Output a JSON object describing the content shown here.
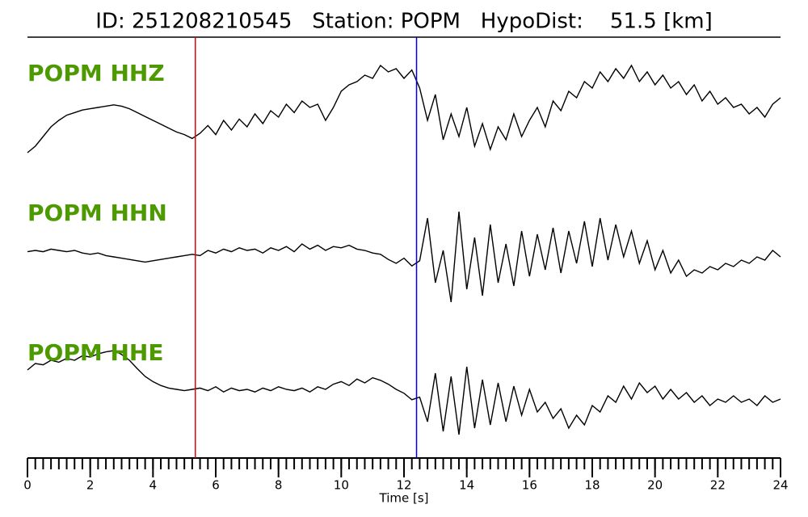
{
  "chart_data": {
    "type": "line",
    "title": "ID: 251208210545   Station: POPM   HypoDist:    51.5 [km]",
    "xlabel": "Time [s]",
    "xlim": [
      0,
      24
    ],
    "xticks": [
      0,
      2,
      4,
      6,
      8,
      10,
      12,
      14,
      16,
      18,
      20,
      22,
      24
    ],
    "xminorticks": [
      0,
      0.25,
      0.5,
      0.75,
      1,
      1.25,
      1.5,
      1.75,
      2,
      2.25,
      2.5,
      2.75,
      3,
      3.25,
      3.5,
      3.75,
      4,
      4.25,
      4.5,
      4.75,
      5,
      5.25,
      5.5,
      5.75,
      6,
      6.25,
      6.5,
      6.75,
      7,
      7.25,
      7.5,
      7.75,
      8,
      8.25,
      8.5,
      8.75,
      9,
      9.25,
      9.5,
      9.75,
      10,
      10.25,
      10.5,
      10.75,
      11,
      11.25,
      11.5,
      11.75,
      12,
      12.25,
      12.5,
      12.75,
      13,
      13.25,
      13.5,
      13.75,
      14,
      14.25,
      14.5,
      14.75,
      15,
      15.25,
      15.5,
      15.75,
      16,
      16.25,
      16.5,
      16.75,
      17,
      17.25,
      17.5,
      17.75,
      18,
      18.25,
      18.5,
      18.75,
      19,
      19.25,
      19.5,
      19.75,
      20,
      20.25,
      20.5,
      20.75,
      21,
      21.25,
      21.5,
      21.75,
      22,
      22.25,
      22.5,
      22.75,
      23,
      23.25,
      23.5,
      23.75,
      24
    ],
    "x": [
      0,
      0.25,
      0.5,
      0.75,
      1,
      1.25,
      1.5,
      1.75,
      2,
      2.25,
      2.5,
      2.75,
      3,
      3.25,
      3.5,
      3.75,
      4,
      4.25,
      4.5,
      4.75,
      5,
      5.25,
      5.5,
      5.75,
      6,
      6.25,
      6.5,
      6.75,
      7,
      7.25,
      7.5,
      7.75,
      8,
      8.25,
      8.5,
      8.75,
      9,
      9.25,
      9.5,
      9.75,
      10,
      10.25,
      10.5,
      10.75,
      11,
      11.25,
      11.5,
      11.75,
      12,
      12.25,
      12.5,
      12.75,
      13,
      13.25,
      13.5,
      13.75,
      14,
      14.25,
      14.5,
      14.75,
      15,
      15.25,
      15.5,
      15.75,
      16,
      16.25,
      16.5,
      16.75,
      17,
      17.25,
      17.5,
      17.75,
      18,
      18.25,
      18.5,
      18.75,
      19,
      19.25,
      19.5,
      19.75,
      20,
      20.25,
      20.5,
      20.75,
      21,
      21.25,
      21.5,
      21.75,
      22,
      22.25,
      22.5,
      22.75,
      23,
      23.25,
      23.5,
      23.75,
      24
    ],
    "ylim": [
      -100,
      100
    ],
    "label_color": "#4c9a00",
    "series": [
      {
        "name": "POPM HHZ",
        "color": "#000000",
        "values": [
          -80,
          -70,
          -55,
          -40,
          -30,
          -22,
          -18,
          -14,
          -12,
          -10,
          -8,
          -6,
          -8,
          -12,
          -18,
          -24,
          -30,
          -36,
          -42,
          -48,
          -52,
          -58,
          -50,
          -38,
          -52,
          -30,
          -45,
          -28,
          -40,
          -20,
          -35,
          -15,
          -25,
          -5,
          -18,
          0,
          -10,
          -5,
          -30,
          -10,
          15,
          25,
          30,
          40,
          35,
          55,
          45,
          50,
          35,
          48,
          20,
          -30,
          10,
          -60,
          -20,
          -55,
          -10,
          -70,
          -35,
          -75,
          -40,
          -60,
          -20,
          -55,
          -30,
          -10,
          -40,
          0,
          -15,
          15,
          5,
          30,
          20,
          45,
          30,
          50,
          35,
          55,
          30,
          45,
          25,
          40,
          20,
          30,
          10,
          25,
          0,
          15,
          -5,
          5,
          -10,
          -5,
          -20,
          -10,
          -25,
          -5,
          5
        ]
      },
      {
        "name": "POPM HHN",
        "color": "#000000",
        "values": [
          8,
          10,
          8,
          12,
          10,
          8,
          10,
          6,
          4,
          6,
          2,
          0,
          -2,
          -4,
          -6,
          -8,
          -6,
          -4,
          -2,
          0,
          2,
          4,
          2,
          10,
          6,
          12,
          8,
          14,
          10,
          12,
          6,
          14,
          10,
          16,
          8,
          20,
          12,
          18,
          10,
          16,
          14,
          18,
          12,
          10,
          6,
          4,
          -4,
          -10,
          -2,
          -14,
          -6,
          60,
          -40,
          10,
          -70,
          70,
          -50,
          30,
          -60,
          50,
          -40,
          20,
          -45,
          40,
          -30,
          35,
          -20,
          45,
          -25,
          40,
          -10,
          55,
          -15,
          60,
          -5,
          50,
          0,
          40,
          -10,
          25,
          -20,
          10,
          -25,
          -5,
          -30,
          -20,
          -25,
          -15,
          -20,
          -10,
          -15,
          -5,
          -10,
          0,
          -5,
          10,
          0
        ]
      },
      {
        "name": "POPM HHE",
        "color": "#000000",
        "values": [
          40,
          50,
          48,
          55,
          52,
          58,
          55,
          62,
          60,
          65,
          68,
          70,
          64,
          55,
          42,
          30,
          22,
          16,
          12,
          10,
          8,
          10,
          12,
          8,
          14,
          6,
          12,
          8,
          10,
          6,
          12,
          8,
          14,
          10,
          8,
          12,
          6,
          14,
          10,
          18,
          22,
          16,
          26,
          20,
          28,
          24,
          18,
          10,
          4,
          -6,
          -2,
          -40,
          35,
          -55,
          30,
          -60,
          45,
          -50,
          25,
          -45,
          20,
          -40,
          15,
          -30,
          10,
          -25,
          -10,
          -35,
          -20,
          -50,
          -30,
          -45,
          -15,
          -25,
          0,
          -10,
          15,
          -5,
          20,
          5,
          15,
          -5,
          10,
          -5,
          5,
          -10,
          0,
          -15,
          -5,
          -10,
          0,
          -10,
          -5,
          -15,
          0,
          -10,
          -5
        ]
      }
    ],
    "markers": [
      {
        "x": 5.35,
        "color": "#e8000b"
      },
      {
        "x": 12.4,
        "color": "#0000e0"
      }
    ]
  }
}
